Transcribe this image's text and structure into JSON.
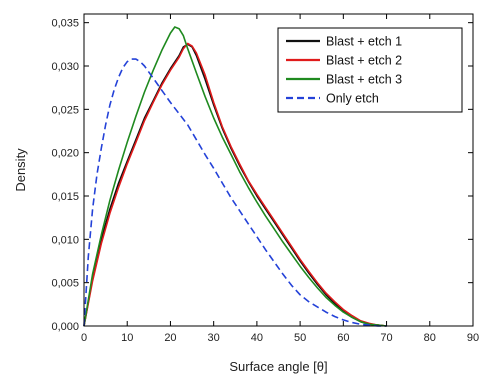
{
  "chart_data": {
    "type": "line",
    "xlabel": "Surface angle [θ]",
    "ylabel": "Density",
    "xlim": [
      0,
      90
    ],
    "ylim": [
      0,
      0.036
    ],
    "x_ticks": [
      "0",
      "10",
      "20",
      "30",
      "40",
      "50",
      "60",
      "70",
      "80",
      "90"
    ],
    "y_ticks": [
      "0,000",
      "0,005",
      "0,010",
      "0,015",
      "0,020",
      "0,025",
      "0,030",
      "0,035"
    ],
    "legend_position": "top-right",
    "grid": false,
    "series": [
      {
        "name": "Blast + etch 1",
        "color": "#111111",
        "style": "solid",
        "x": [
          0,
          2,
          4,
          6,
          8,
          10,
          12,
          14,
          16,
          18,
          20,
          22,
          23,
          24,
          25,
          26,
          28,
          30,
          32,
          34,
          36,
          38,
          40,
          42,
          44,
          46,
          48,
          50,
          52,
          54,
          56,
          58,
          60,
          62,
          64,
          66,
          68,
          70
        ],
        "y": [
          0.0,
          0.0055,
          0.01,
          0.0135,
          0.0165,
          0.019,
          0.0215,
          0.024,
          0.026,
          0.028,
          0.0297,
          0.0312,
          0.0322,
          0.0325,
          0.0322,
          0.0312,
          0.0285,
          0.0255,
          0.0228,
          0.0205,
          0.0185,
          0.0167,
          0.015,
          0.0135,
          0.012,
          0.0105,
          0.009,
          0.0075,
          0.0061,
          0.0048,
          0.0036,
          0.0026,
          0.0017,
          0.001,
          0.0005,
          0.0002,
          0.0001,
          0.0
        ]
      },
      {
        "name": "Blast + etch 2",
        "color": "#e01b1b",
        "style": "solid",
        "x": [
          0,
          2,
          4,
          6,
          8,
          10,
          12,
          14,
          16,
          18,
          20,
          22,
          23,
          24,
          25,
          26,
          28,
          30,
          32,
          34,
          36,
          38,
          40,
          42,
          44,
          46,
          48,
          50,
          52,
          54,
          56,
          58,
          60,
          62,
          64,
          66,
          68,
          70
        ],
        "y": [
          0.0,
          0.0052,
          0.0095,
          0.013,
          0.016,
          0.0187,
          0.0212,
          0.0237,
          0.0258,
          0.0278,
          0.0295,
          0.031,
          0.032,
          0.0326,
          0.0323,
          0.0315,
          0.029,
          0.0258,
          0.023,
          0.0207,
          0.0187,
          0.0168,
          0.0152,
          0.0137,
          0.0122,
          0.0107,
          0.0092,
          0.0077,
          0.0063,
          0.005,
          0.0038,
          0.0028,
          0.0019,
          0.0012,
          0.0006,
          0.0003,
          0.0001,
          0.0
        ]
      },
      {
        "name": "Blast + etch 3",
        "color": "#1f8a1f",
        "style": "solid",
        "x": [
          0,
          2,
          4,
          6,
          8,
          10,
          12,
          14,
          16,
          18,
          20,
          21,
          22,
          23,
          24,
          26,
          28,
          30,
          32,
          34,
          36,
          38,
          40,
          42,
          44,
          46,
          48,
          50,
          52,
          54,
          56,
          58,
          60,
          62,
          64,
          66,
          68,
          70
        ],
        "y": [
          0.0,
          0.006,
          0.0105,
          0.0145,
          0.018,
          0.0212,
          0.0242,
          0.027,
          0.0295,
          0.0318,
          0.0338,
          0.0345,
          0.0343,
          0.0335,
          0.032,
          0.0292,
          0.0265,
          0.024,
          0.0218,
          0.0198,
          0.0178,
          0.016,
          0.0143,
          0.0127,
          0.0112,
          0.0097,
          0.0083,
          0.0069,
          0.0056,
          0.0044,
          0.0033,
          0.0024,
          0.0016,
          0.001,
          0.0005,
          0.0002,
          0.0001,
          0.0
        ]
      },
      {
        "name": "Only etch",
        "color": "#2442d8",
        "style": "dashed",
        "x": [
          0,
          1,
          2,
          3,
          4,
          5,
          6,
          7,
          8,
          9,
          10,
          11,
          12,
          13,
          14,
          15,
          16,
          18,
          20,
          22,
          24,
          26,
          28,
          30,
          32,
          34,
          36,
          38,
          40,
          42,
          44,
          46,
          48,
          50,
          52,
          54,
          56,
          58,
          60,
          62,
          64,
          66,
          68,
          70
        ],
        "y": [
          0.0,
          0.008,
          0.0135,
          0.0175,
          0.0205,
          0.0232,
          0.0255,
          0.0273,
          0.0287,
          0.0298,
          0.0305,
          0.0308,
          0.0308,
          0.0305,
          0.03,
          0.0293,
          0.0286,
          0.0272,
          0.0258,
          0.0245,
          0.0232,
          0.0215,
          0.0198,
          0.0182,
          0.0165,
          0.0148,
          0.0133,
          0.0118,
          0.0103,
          0.0088,
          0.0074,
          0.006,
          0.0047,
          0.0036,
          0.0028,
          0.0022,
          0.0016,
          0.0011,
          0.0007,
          0.0004,
          0.0002,
          0.0001,
          0.0,
          0.0
        ]
      }
    ]
  }
}
